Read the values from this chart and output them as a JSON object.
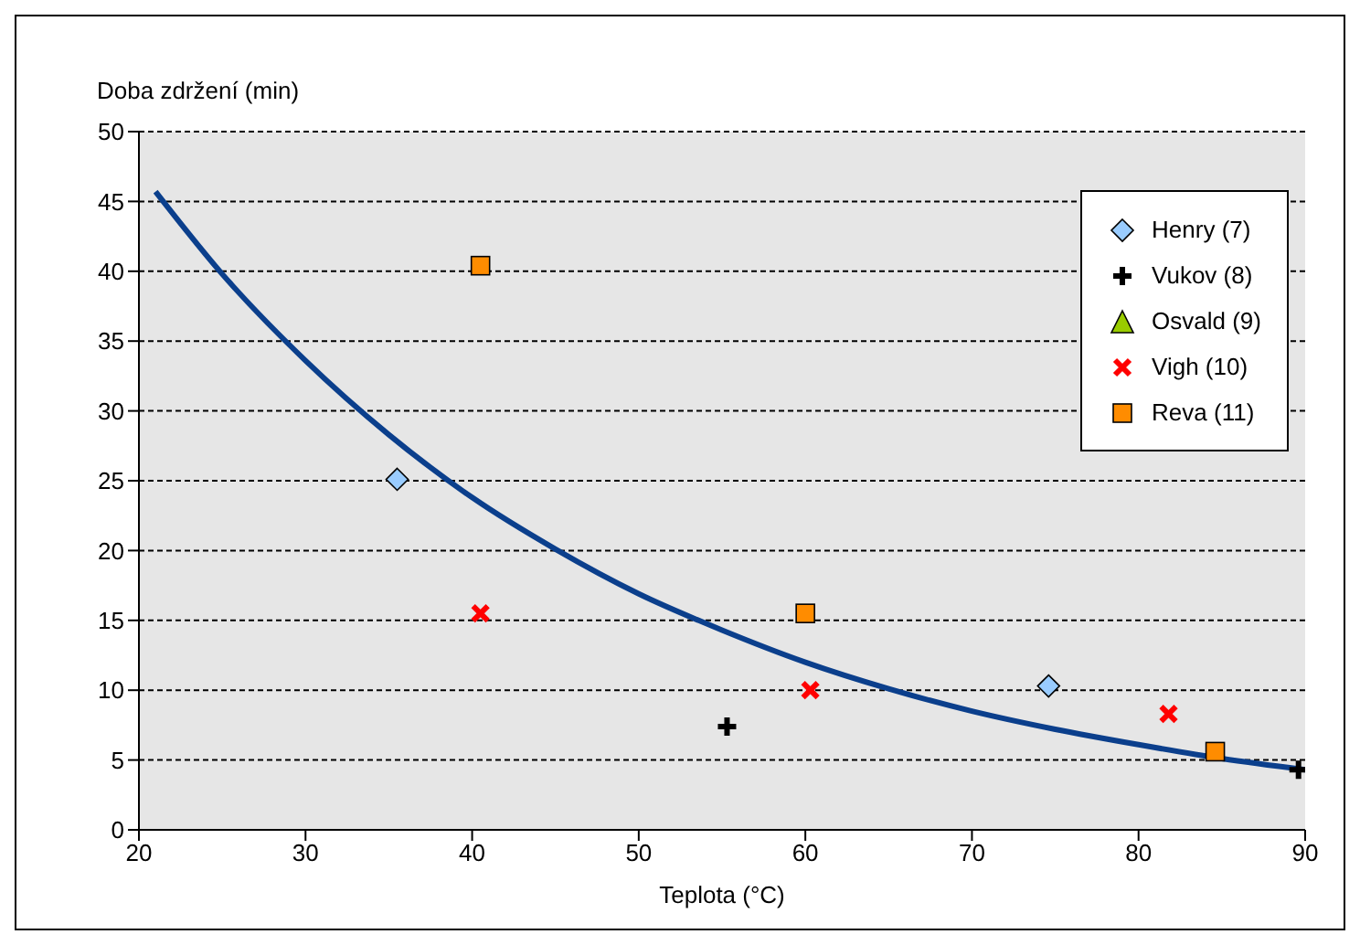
{
  "chart_data": {
    "type": "scatter",
    "xlabel": "Teplota (°C)",
    "ylabel": "Doba zdržení (min)",
    "xlim": [
      20,
      90
    ],
    "xticks": [
      20,
      30,
      40,
      50,
      60,
      70,
      80,
      90
    ],
    "ylim": [
      0,
      50
    ],
    "yticks": [
      0,
      5,
      10,
      15,
      20,
      25,
      30,
      35,
      40,
      45,
      50
    ],
    "grid": "y",
    "legend": "top right",
    "series": [
      {
        "name": "Henry (7)",
        "color": "#99ccff",
        "marker": "diamond",
        "x": [
          35.5,
          74.6
        ],
        "values": [
          25.1,
          10.3
        ]
      },
      {
        "name": "Vukov (8)",
        "color": "#000000",
        "marker": "plus",
        "x": [
          55.3,
          89.6
        ],
        "values": [
          7.4,
          4.3
        ]
      },
      {
        "name": "Osvald (9)",
        "color": "#99cc00",
        "marker": "triangle"
      },
      {
        "name": "Vigh (10)",
        "color": "#ff0000",
        "marker": "cross",
        "x": [
          40.5,
          60.3,
          81.8
        ],
        "values": [
          15.5,
          10.0,
          8.3
        ]
      },
      {
        "name": "Reva (11)",
        "color": "#ff8c00",
        "marker": "square",
        "x": [
          40.5,
          60.0,
          84.6
        ],
        "values": [
          40.4,
          15.5,
          5.6
        ]
      },
      {
        "type": "line",
        "color": "#0b3f8c",
        "marker": "none",
        "line_style": "solid",
        "x": [
          21,
          25,
          30,
          35,
          40,
          45,
          50,
          55,
          60,
          65,
          70,
          75,
          80,
          85,
          90
        ],
        "values": [
          45.7,
          39.8,
          33.6,
          28.3,
          23.8,
          20.1,
          16.9,
          14.3,
          12.0,
          10.1,
          8.5,
          7.2,
          6.1,
          5.1,
          4.3
        ]
      }
    ]
  }
}
